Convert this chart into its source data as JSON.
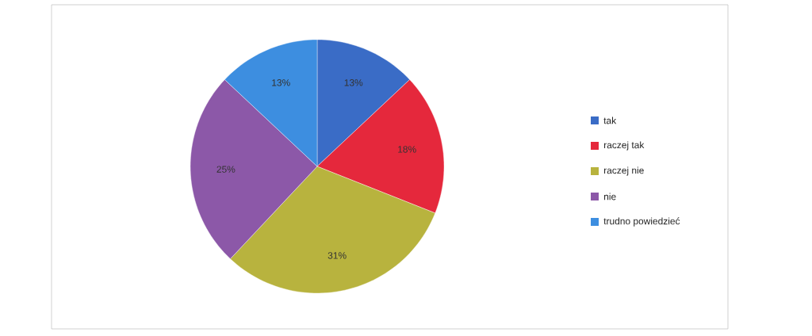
{
  "chart_data": {
    "type": "pie",
    "categories": [
      "tak",
      "raczej tak",
      "raczej nie",
      "nie",
      "trudno powiedzieć"
    ],
    "values": [
      13,
      18,
      31,
      25,
      13
    ],
    "colors": [
      "#3a6cc6",
      "#e5283c",
      "#b8b33e",
      "#8c58a8",
      "#3d8ee0"
    ],
    "value_labels": [
      "13%",
      "18%",
      "31%",
      "25%",
      "13%"
    ],
    "legend": "right"
  }
}
